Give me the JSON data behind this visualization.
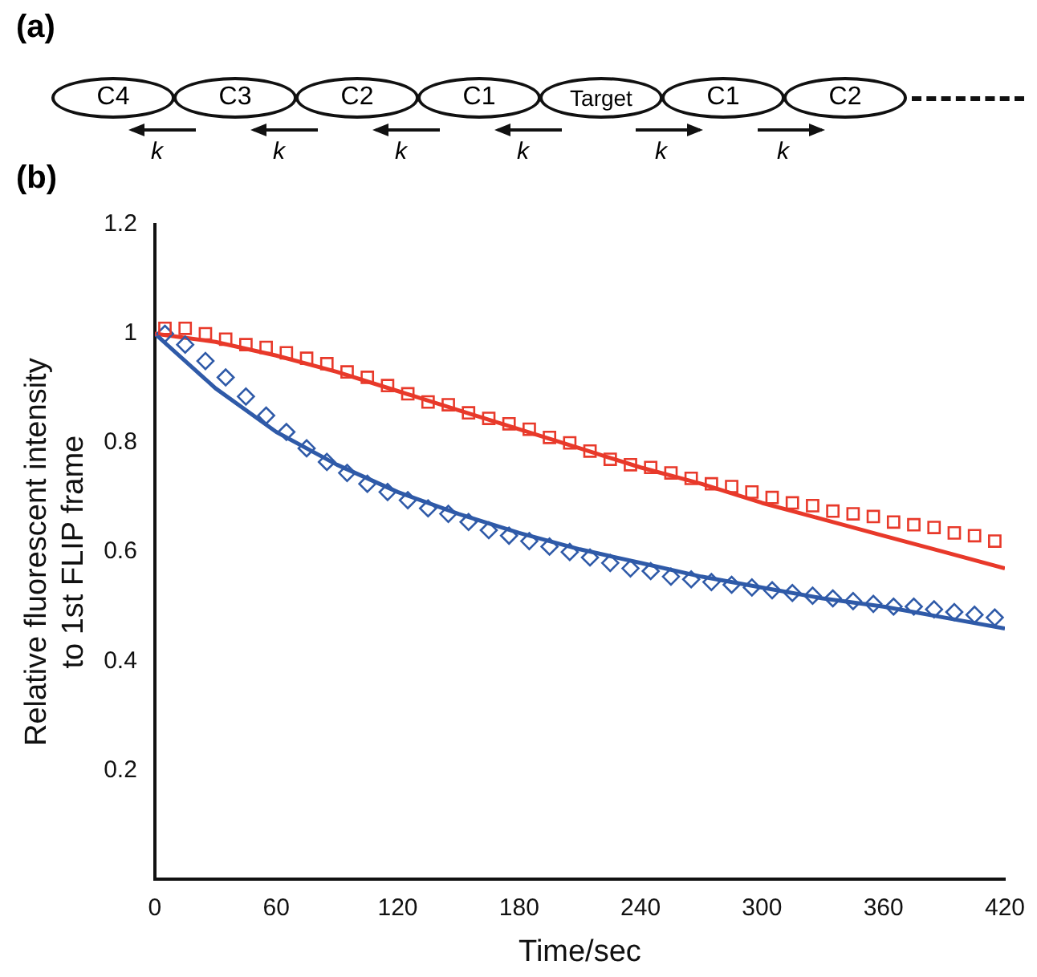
{
  "chart_data": [
    {
      "type": "other",
      "title": "(a)",
      "annotations": [
        "C4",
        "C3",
        "C2",
        "C1",
        "Target",
        "C1",
        "C2",
        "k",
        "k",
        "k",
        "k",
        "k",
        "k"
      ]
    },
    {
      "type": "scatter",
      "title": "(b)",
      "xlabel": "Time/sec",
      "ylabel": "Relative fluorescent intensity to 1st FLIP frame",
      "xlim": [
        0,
        420
      ],
      "xticks": [
        0,
        60,
        120,
        180,
        240,
        300,
        360,
        420
      ],
      "ylim": [
        0,
        1.2
      ],
      "yticks": [
        0.2,
        0.4,
        0.6,
        0.8,
        1,
        1.2
      ],
      "grid": false,
      "legend": false,
      "series": [
        {
          "type": "scatter",
          "marker": "square",
          "color": "#e8392a",
          "x": [
            5,
            15,
            25,
            35,
            45,
            55,
            65,
            75,
            85,
            95,
            105,
            115,
            125,
            135,
            145,
            155,
            165,
            175,
            185,
            195,
            205,
            215,
            225,
            235,
            245,
            255,
            265,
            275,
            285,
            295,
            305,
            315,
            325,
            335,
            345,
            355,
            365,
            375,
            385,
            395,
            405,
            415
          ],
          "values": [
            1.01,
            1.01,
            1.0,
            0.99,
            0.98,
            0.975,
            0.965,
            0.955,
            0.945,
            0.93,
            0.92,
            0.905,
            0.89,
            0.875,
            0.87,
            0.855,
            0.845,
            0.835,
            0.825,
            0.81,
            0.8,
            0.785,
            0.77,
            0.76,
            0.755,
            0.745,
            0.735,
            0.725,
            0.72,
            0.71,
            0.7,
            0.69,
            0.685,
            0.675,
            0.67,
            0.665,
            0.655,
            0.65,
            0.645,
            0.635,
            0.63,
            0.62
          ]
        },
        {
          "type": "scatter",
          "marker": "diamond",
          "color": "#2f5aa8",
          "x": [
            5,
            15,
            25,
            35,
            45,
            55,
            65,
            75,
            85,
            95,
            105,
            115,
            125,
            135,
            145,
            155,
            165,
            175,
            185,
            195,
            205,
            215,
            225,
            235,
            245,
            255,
            265,
            275,
            285,
            295,
            305,
            315,
            325,
            335,
            345,
            355,
            365,
            375,
            385,
            395,
            405,
            415
          ],
          "values": [
            1.0,
            0.98,
            0.95,
            0.92,
            0.885,
            0.85,
            0.82,
            0.79,
            0.765,
            0.745,
            0.725,
            0.71,
            0.695,
            0.68,
            0.67,
            0.655,
            0.64,
            0.63,
            0.62,
            0.61,
            0.6,
            0.59,
            0.58,
            0.57,
            0.565,
            0.555,
            0.55,
            0.545,
            0.54,
            0.535,
            0.53,
            0.525,
            0.52,
            0.515,
            0.51,
            0.505,
            0.5,
            0.5,
            0.495,
            0.49,
            0.485,
            0.48
          ]
        },
        {
          "type": "line",
          "marker": "none",
          "line_style": "solid",
          "color": "#e8392a",
          "x": [
            0,
            30,
            60,
            90,
            120,
            150,
            180,
            210,
            240,
            270,
            300,
            330,
            360,
            390,
            420
          ],
          "values": [
            1.0,
            0.985,
            0.96,
            0.93,
            0.895,
            0.86,
            0.825,
            0.79,
            0.755,
            0.725,
            0.69,
            0.66,
            0.63,
            0.6,
            0.57
          ]
        },
        {
          "type": "line",
          "marker": "none",
          "line_style": "solid",
          "color": "#2f5aa8",
          "x": [
            0,
            30,
            60,
            90,
            120,
            150,
            180,
            210,
            240,
            270,
            300,
            330,
            360,
            390,
            420
          ],
          "values": [
            1.0,
            0.9,
            0.82,
            0.76,
            0.71,
            0.67,
            0.635,
            0.605,
            0.58,
            0.555,
            0.535,
            0.515,
            0.5,
            0.48,
            0.46
          ]
        }
      ]
    }
  ]
}
